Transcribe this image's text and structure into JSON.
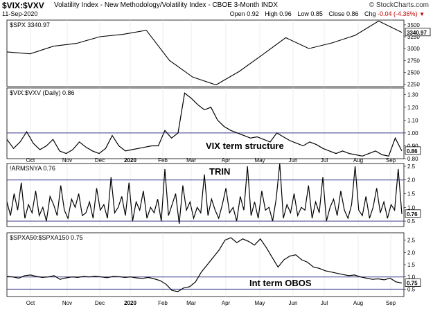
{
  "header": {
    "symbol": "$VIX:$VXV",
    "description": "Volatility Index - New Methodology/Volatility Index - CBOE 3-Month INDX",
    "brand": "© StockCharts.com",
    "date": "11-Sep-2020",
    "open_label": "Open",
    "open": "0.92",
    "high_label": "High",
    "high": "0.96",
    "low_label": "Low",
    "low": "0.85",
    "close_label": "Close",
    "close": "0.86",
    "chg_label": "Chg",
    "chg": "-0.04 (-4.36%)"
  },
  "x_axis_labels": [
    "Oct",
    "Nov",
    "Dec",
    "2020",
    "Feb",
    "Mar",
    "Apr",
    "May",
    "Jun",
    "Jul",
    "Aug",
    "Sep"
  ],
  "chart_data": [
    {
      "type": "line",
      "panel": "spx",
      "title": "$SPX 3340.97",
      "last_value": "3340.97",
      "ylim": [
        2200,
        3600
      ],
      "y_ticks": [
        "2250",
        "2500",
        "2750",
        "3000",
        "3250",
        "3500"
      ],
      "x": [
        "Sep 2019",
        "Oct",
        "Nov",
        "Dec",
        "Jan 2020",
        "Feb",
        "Feb 19",
        "Mar 9",
        "Mar 16",
        "Mar 23",
        "Apr",
        "May",
        "Jun 8",
        "Jun 11",
        "Jul",
        "Aug",
        "Sep 2",
        "Sep 11"
      ],
      "y": [
        2930,
        2890,
        3050,
        3110,
        3250,
        3300,
        3386,
        2750,
        2400,
        2237,
        2520,
        2870,
        3230,
        3000,
        3120,
        3280,
        3580,
        3341
      ]
    },
    {
      "type": "line",
      "panel": "vix_vxv",
      "title": "$VIX:$VXV (Daily) 0.86",
      "annotation": "VIX term structure",
      "last_value": "0.86",
      "reference_line": 1.0,
      "ylim": [
        0.8,
        1.35
      ],
      "y_ticks": [
        "0.80",
        "0.90",
        "1.00",
        "1.10",
        "1.20",
        "1.30"
      ],
      "y": [
        0.95,
        0.88,
        0.93,
        1.01,
        0.92,
        0.87,
        0.9,
        0.95,
        0.86,
        0.84,
        0.87,
        0.93,
        0.89,
        0.86,
        0.84,
        0.88,
        0.98,
        0.9,
        0.86,
        0.87,
        0.88,
        0.89,
        0.9,
        0.9,
        1.02,
        0.96,
        1.0,
        1.31,
        1.27,
        1.22,
        1.18,
        1.2,
        1.1,
        1.05,
        1.02,
        1.0,
        0.98,
        0.96,
        0.97,
        0.95,
        0.93,
        1.0,
        0.97,
        0.94,
        0.92,
        0.9,
        0.93,
        0.91,
        0.88,
        0.86,
        0.84,
        0.86,
        0.84,
        0.83,
        0.82,
        0.84,
        0.86,
        0.83,
        0.82,
        0.96,
        0.86
      ]
    },
    {
      "type": "line",
      "panel": "trin",
      "title": "!ARMSNYA 0.76",
      "annotation": "TRIN",
      "last_value": "0.76",
      "reference_lines": [
        2.0,
        0.5
      ],
      "ylim": [
        0.3,
        2.6
      ],
      "y_ticks": [
        "0.5",
        "1.0",
        "1.5",
        "2.0",
        "2.5"
      ],
      "y": [
        1.2,
        0.7,
        1.5,
        0.9,
        1.9,
        0.6,
        1.1,
        0.8,
        1.6,
        0.7,
        1.0,
        0.5,
        1.4,
        1.1,
        0.7,
        1.8,
        0.9,
        0.6,
        1.3,
        1.0,
        1.5,
        0.7,
        0.8,
        1.2,
        0.6,
        1.7,
        0.9,
        1.1,
        0.6,
        2.1,
        0.8,
        1.0,
        1.4,
        0.7,
        1.9,
        0.5,
        1.2,
        0.9,
        1.6,
        0.6,
        1.0,
        0.8,
        1.3,
        0.5,
        2.4,
        0.7,
        1.1,
        1.5,
        0.4,
        1.8,
        0.9,
        1.2,
        0.6,
        1.0,
        0.8,
        2.2,
        0.7,
        1.3,
        0.9,
        0.6,
        1.1,
        1.7,
        0.8,
        1.0,
        0.5,
        1.4,
        0.9,
        2.5,
        0.7,
        1.2,
        0.6,
        1.6,
        0.9,
        1.0,
        0.5,
        1.3,
        2.6,
        0.6,
        1.1,
        0.8,
        1.5,
        0.7,
        1.0,
        0.9,
        1.8,
        0.6,
        1.2,
        0.8,
        2.1,
        0.5,
        1.0,
        1.3,
        0.7,
        1.6,
        0.9,
        0.6,
        1.1,
        2.5,
        0.9,
        0.7,
        1.4,
        0.6,
        1.0,
        1.7,
        0.8,
        1.2,
        0.6,
        1.1,
        0.9,
        2.4,
        0.76
      ]
    },
    {
      "type": "line",
      "panel": "spxa50_spxa150",
      "title": "$SPXA50:$SPXA150 0.75",
      "annotation": "Int term OBOS",
      "last_value": "0.75",
      "reference_lines": [
        1.0,
        0.5
      ],
      "ylim": [
        0.2,
        2.8
      ],
      "y_ticks": [
        "0.5",
        "1.0",
        "1.5",
        "2.0",
        "2.5"
      ],
      "y": [
        1.02,
        1.0,
        0.95,
        1.05,
        1.08,
        1.02,
        0.98,
        1.0,
        1.05,
        0.9,
        0.96,
        1.0,
        0.98,
        1.02,
        1.0,
        1.03,
        1.0,
        0.97,
        1.02,
        1.01,
        0.98,
        1.0,
        0.96,
        0.94,
        0.98,
        0.92,
        0.85,
        0.7,
        0.45,
        0.4,
        0.55,
        0.6,
        0.8,
        1.2,
        1.5,
        1.8,
        2.1,
        2.5,
        2.6,
        2.4,
        2.55,
        2.45,
        2.3,
        2.55,
        2.2,
        1.8,
        1.4,
        1.7,
        1.85,
        1.9,
        1.7,
        1.6,
        1.4,
        1.35,
        1.25,
        1.2,
        1.15,
        1.1,
        1.05,
        1.08,
        1.0,
        0.95,
        0.9,
        0.92,
        0.88,
        0.95,
        0.8,
        0.75
      ]
    }
  ]
}
